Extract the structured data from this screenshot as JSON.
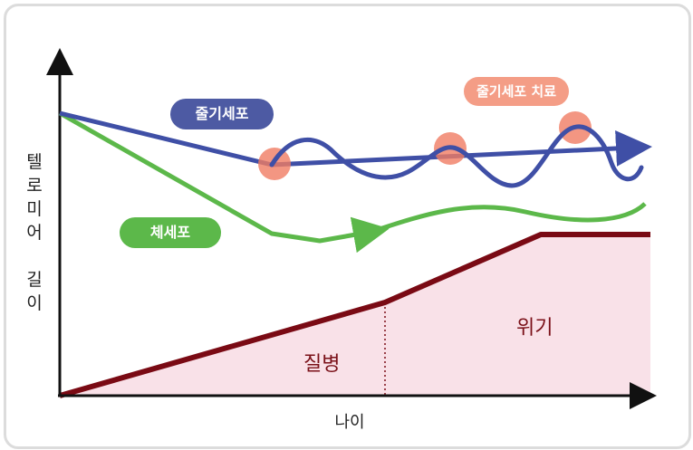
{
  "axes": {
    "y_label": "텔로미어 길이",
    "x_label": "나이"
  },
  "legend_labels": {
    "stem_cell": "줄기세포",
    "somatic_cell": "체세포",
    "stem_cell_therapy": "줄기세포 치료"
  },
  "regions": {
    "disease": "질병",
    "crisis": "위기"
  },
  "colors": {
    "stem_cell_line": "#3f4fa6",
    "somatic_cell_line": "#5cb84a",
    "therapy_marker": "#f07c63",
    "threshold_line": "#7a0a14",
    "region_fill": "#f9e1e8"
  }
}
